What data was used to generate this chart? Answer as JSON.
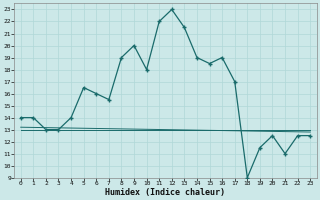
{
  "xlabel": "Humidex (Indice chaleur)",
  "bg_color": "#cce8e8",
  "line_color": "#1a6b6b",
  "grid_color": "#b0d8d8",
  "xlim": [
    -0.5,
    23.5
  ],
  "ylim": [
    9,
    23.5
  ],
  "yticks": [
    9,
    10,
    11,
    12,
    13,
    14,
    15,
    16,
    17,
    18,
    19,
    20,
    21,
    22,
    23
  ],
  "xticks": [
    0,
    1,
    2,
    3,
    4,
    5,
    6,
    7,
    8,
    9,
    10,
    11,
    12,
    13,
    14,
    15,
    16,
    17,
    18,
    19,
    20,
    21,
    22,
    23
  ],
  "series1_x": [
    0,
    1,
    2,
    3,
    4,
    5,
    6,
    7,
    8,
    9,
    10,
    11,
    12,
    13,
    14,
    15,
    16,
    17,
    18,
    19,
    20,
    21,
    22,
    23
  ],
  "series1_y": [
    14.0,
    14.0,
    13.0,
    13.0,
    14.0,
    16.5,
    16.0,
    15.5,
    19.0,
    20.0,
    18.0,
    22.0,
    23.0,
    21.5,
    19.0,
    18.5,
    19.0,
    17.0,
    9.0,
    11.5,
    12.5,
    11.0,
    12.5,
    12.5
  ],
  "series2_x": [
    0,
    23
  ],
  "series2_y": [
    13.2,
    12.8
  ],
  "series3_x": [
    0,
    23
  ],
  "series3_y": [
    13.0,
    13.0
  ]
}
